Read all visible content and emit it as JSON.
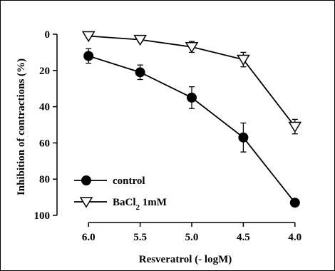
{
  "chart_data": {
    "type": "line",
    "xlabel": "Resveratrol (- logM)",
    "ylabel": "Inhibition of contractions (%)",
    "x": [
      "6.0",
      "5.5",
      "5.0",
      "4.5",
      "4.0"
    ],
    "xlim": [
      6.25,
      3.75
    ],
    "ylim": [
      0,
      100
    ],
    "y_inverted": true,
    "yticks": [
      0,
      20,
      40,
      60,
      80,
      100
    ],
    "grid": false,
    "legend_position": "bottom-left",
    "series": [
      {
        "name": "control",
        "marker": "filled-circle",
        "color": "#000000",
        "x": [
          6.0,
          5.5,
          5.0,
          4.5,
          4.0
        ],
        "values": [
          12,
          21,
          35,
          57,
          93
        ],
        "errors": [
          4,
          4,
          6,
          8,
          2
        ]
      },
      {
        "name": "BaCl2 1mM",
        "name_base": "BaCl",
        "name_sub": "2",
        "name_rest": " 1mM",
        "marker": "open-triangle-down",
        "color": "#000000",
        "x": [
          6.0,
          5.5,
          5.0,
          4.5,
          4.0
        ],
        "values": [
          1,
          3,
          7,
          14,
          51
        ],
        "errors": [
          1,
          1,
          3,
          4,
          4
        ]
      }
    ]
  }
}
